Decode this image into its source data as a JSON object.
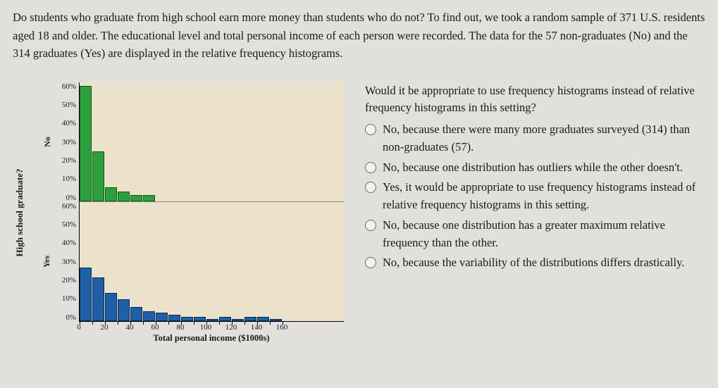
{
  "question": "Do students who graduate from high school earn more money than students who do not? To find out, we took a random sample of 371 U.S. residents aged 18 and older. The educational level and total personal income of each person were recorded. The data for the 57 non-graduates (No) and the 314 graduates (Yes) are displayed in the relative frequency histograms.",
  "outer_y_label": "High school graduate?",
  "x_label": "Total personal income ($1000s)",
  "panel_top": {
    "label": "No",
    "ymax": 60,
    "yticks": [
      "60%",
      "50%",
      "40%",
      "30%",
      "20%",
      "10%",
      "0%"
    ],
    "bar_color_class": "green",
    "plot_bg": "#ece1c9",
    "values": [
      58,
      25,
      7,
      5,
      3,
      3
    ]
  },
  "panel_bottom": {
    "label": "Yes",
    "ymax": 60,
    "yticks": [
      "60%",
      "50%",
      "40%",
      "30%",
      "20%",
      "10%",
      "0%"
    ],
    "bar_color_class": "blue",
    "plot_bg": "#ece1c9",
    "values": [
      27,
      22,
      14,
      11,
      7,
      5,
      4,
      3,
      2,
      2,
      1,
      2,
      1,
      2,
      2,
      1
    ]
  },
  "xticks": [
    "0",
    "20",
    "40",
    "60",
    "80",
    "100",
    "120",
    "140",
    "160"
  ],
  "prompt": "Would it be appropriate to use frequency histograms instead of relative frequency histograms in this setting?",
  "choices": [
    "No, because there were many more graduates surveyed (314) than non-graduates (57).",
    "No, because one distribution has outliers while the other doesn't.",
    "Yes, it would be appropriate to use frequency histograms instead of relative frequency histograms in this setting.",
    "No, because one distribution has a greater maximum relative frequency than the other.",
    "No, because the variability of the distributions differs drastically."
  ],
  "colors": {
    "page_bg": "#e2e0dc",
    "plot_bg": "#ece1c9",
    "green_fill": "#2d9f3c",
    "green_border": "#0a5a14",
    "blue_fill": "#1e5fa8",
    "blue_border": "#0a2a55"
  }
}
